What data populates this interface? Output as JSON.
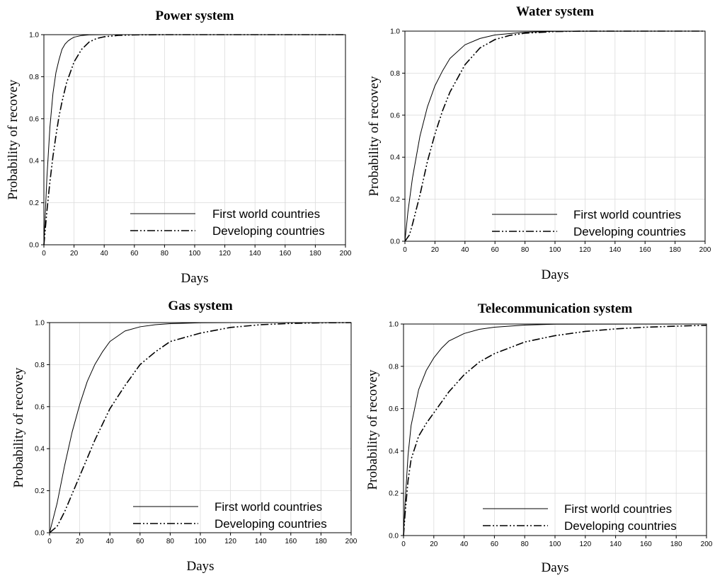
{
  "chart_data": [
    {
      "type": "line",
      "title": "Power system",
      "xlabel": "Days",
      "ylabel": "Probability of recovey",
      "xlim": [
        0,
        200
      ],
      "ylim": [
        0,
        1.0
      ],
      "x_ticks": [
        "0",
        "20",
        "40",
        "60",
        "80",
        "100",
        "120",
        "140",
        "160",
        "180",
        "200"
      ],
      "y_ticks": [
        "0.0",
        "0.2",
        "0.4",
        "0.6",
        "0.8",
        "1.0"
      ],
      "grid": true,
      "legend_position": "bottom-right",
      "series": [
        {
          "name": "First world countries",
          "style": "solid",
          "x": [
            0,
            2,
            4,
            6,
            8,
            10,
            12,
            14,
            16,
            18,
            20,
            25,
            30,
            40,
            60,
            200
          ],
          "y": [
            0,
            0.32,
            0.56,
            0.72,
            0.82,
            0.88,
            0.93,
            0.955,
            0.97,
            0.98,
            0.988,
            0.996,
            0.999,
            1.0,
            1.0,
            1.0
          ]
        },
        {
          "name": "Developing countries",
          "style": "dash-dot",
          "x": [
            0,
            2,
            4,
            6,
            8,
            10,
            12,
            15,
            20,
            25,
            30,
            35,
            40,
            50,
            60,
            80,
            200
          ],
          "y": [
            0,
            0.16,
            0.3,
            0.42,
            0.52,
            0.61,
            0.68,
            0.77,
            0.87,
            0.93,
            0.965,
            0.982,
            0.99,
            0.997,
            0.999,
            1.0,
            1.0
          ]
        }
      ]
    },
    {
      "type": "line",
      "title": "Water system",
      "xlabel": "Days",
      "ylabel": "Probability of recovey",
      "xlim": [
        0,
        200
      ],
      "ylim": [
        0,
        1.0
      ],
      "x_ticks": [
        "0",
        "20",
        "40",
        "60",
        "80",
        "100",
        "120",
        "140",
        "160",
        "180",
        "200"
      ],
      "y_ticks": [
        "0.0",
        "0.2",
        "0.4",
        "0.6",
        "0.8",
        "1.0"
      ],
      "grid": true,
      "legend_position": "bottom-right",
      "series": [
        {
          "name": "First world countries",
          "style": "solid",
          "x": [
            0,
            2,
            5,
            10,
            15,
            20,
            25,
            30,
            40,
            50,
            60,
            80,
            100,
            200
          ],
          "y": [
            0,
            0.14,
            0.3,
            0.5,
            0.64,
            0.74,
            0.81,
            0.87,
            0.935,
            0.965,
            0.982,
            0.995,
            0.999,
            1.0
          ]
        },
        {
          "name": "Developing countries",
          "style": "dash-dot",
          "x": [
            0,
            3,
            5,
            10,
            15,
            20,
            25,
            30,
            40,
            50,
            60,
            70,
            80,
            100,
            120,
            200
          ],
          "y": [
            0,
            0.03,
            0.08,
            0.22,
            0.38,
            0.51,
            0.62,
            0.71,
            0.84,
            0.92,
            0.96,
            0.98,
            0.99,
            0.998,
            1.0,
            1.0
          ]
        }
      ]
    },
    {
      "type": "line",
      "title": "Gas system",
      "xlabel": "Days",
      "ylabel": "Probability of recovey",
      "xlim": [
        0,
        200
      ],
      "ylim": [
        0,
        1.0
      ],
      "x_ticks": [
        "0",
        "20",
        "40",
        "60",
        "80",
        "100",
        "120",
        "140",
        "160",
        "180",
        "200"
      ],
      "y_ticks": [
        "0.0",
        "0.2",
        "0.4",
        "0.6",
        "0.8",
        "1.0"
      ],
      "grid": true,
      "legend_position": "bottom-right",
      "series": [
        {
          "name": "First world countries",
          "style": "solid",
          "x": [
            0,
            5,
            10,
            15,
            20,
            25,
            30,
            35,
            40,
            50,
            60,
            70,
            80,
            100,
            120,
            200
          ],
          "y": [
            0,
            0.14,
            0.32,
            0.48,
            0.61,
            0.72,
            0.8,
            0.86,
            0.91,
            0.96,
            0.98,
            0.99,
            0.995,
            0.999,
            1.0,
            1.0
          ]
        },
        {
          "name": "Developing countries",
          "style": "dash-dot",
          "x": [
            0,
            5,
            10,
            20,
            30,
            40,
            50,
            60,
            70,
            80,
            100,
            120,
            140,
            160,
            180,
            200
          ],
          "y": [
            0,
            0.03,
            0.1,
            0.27,
            0.44,
            0.59,
            0.7,
            0.8,
            0.86,
            0.91,
            0.95,
            0.977,
            0.99,
            0.996,
            0.999,
            1.0
          ]
        }
      ]
    },
    {
      "type": "line",
      "title": "Telecommunication system",
      "xlabel": "Days",
      "ylabel": "Probability of recovey",
      "xlim": [
        0,
        200
      ],
      "ylim": [
        0,
        1.0
      ],
      "x_ticks": [
        "0",
        "20",
        "40",
        "60",
        "80",
        "100",
        "120",
        "140",
        "160",
        "180",
        "200"
      ],
      "y_ticks": [
        "0.0",
        "0.2",
        "0.4",
        "0.6",
        "0.8",
        "1.0"
      ],
      "grid": true,
      "legend_position": "bottom-right",
      "series": [
        {
          "name": "First world countries",
          "style": "solid",
          "x": [
            0,
            1,
            3,
            5,
            10,
            15,
            20,
            25,
            30,
            40,
            50,
            60,
            80,
            100,
            200
          ],
          "y": [
            0,
            0.15,
            0.38,
            0.52,
            0.69,
            0.78,
            0.84,
            0.885,
            0.92,
            0.955,
            0.975,
            0.985,
            0.995,
            0.999,
            1.0
          ]
        },
        {
          "name": "Developing countries",
          "style": "dash-dot",
          "x": [
            0,
            1,
            3,
            5,
            10,
            15,
            20,
            30,
            40,
            50,
            60,
            80,
            100,
            120,
            140,
            160,
            180,
            200
          ],
          "y": [
            0,
            0.1,
            0.26,
            0.36,
            0.47,
            0.53,
            0.58,
            0.68,
            0.76,
            0.82,
            0.86,
            0.915,
            0.945,
            0.965,
            0.977,
            0.985,
            0.99,
            0.994
          ]
        }
      ]
    }
  ]
}
